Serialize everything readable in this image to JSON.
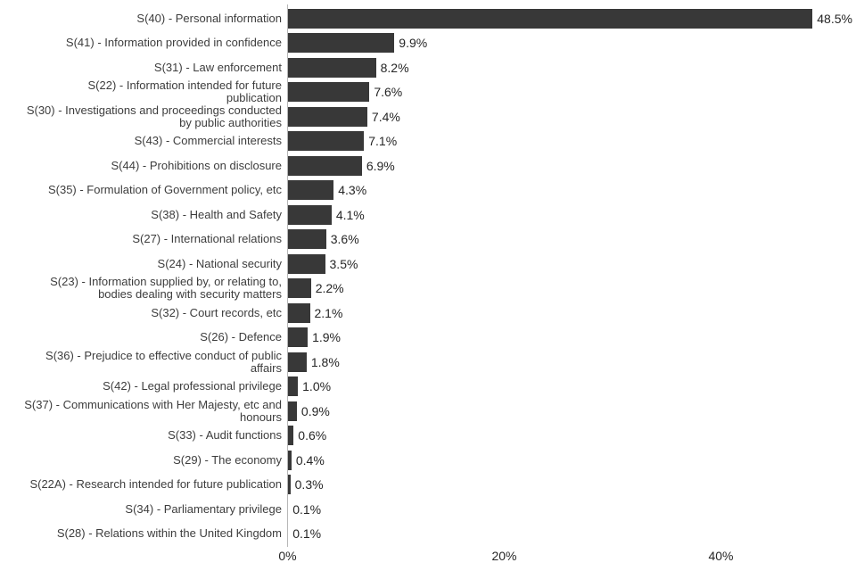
{
  "chart_data": {
    "type": "bar",
    "orientation": "horizontal",
    "title": "",
    "xlabel": "",
    "ylabel": "",
    "grid": false,
    "legend": false,
    "bar_color": "#383838",
    "label_color": "#3d3d3d",
    "axis_line_color": "#b7b7b7",
    "xlim": [
      0,
      52.5
    ],
    "x_ticks": [
      "0%",
      "20%",
      "40%"
    ],
    "x_tick_values": [
      0,
      20,
      40
    ],
    "categories": [
      "S(40) - Personal information",
      "S(41) - Information provided in confidence",
      "S(31) - Law enforcement",
      "S(22) - Information intended for future\npublication",
      "S(30) - Investigations and proceedings conducted\nby public authorities",
      "S(43) - Commercial interests",
      "S(44) - Prohibitions on disclosure",
      "S(35) - Formulation of Government policy, etc",
      "S(38) - Health and Safety",
      "S(27) - International relations",
      "S(24) - National security",
      "S(23) - Information supplied by, or relating to,\nbodies dealing with security matters",
      "S(32) - Court records, etc",
      "S(26) - Defence",
      "S(36) - Prejudice to effective conduct of public\naffairs",
      "S(42) - Legal professional privilege",
      "S(37) - Communications with Her Majesty, etc and\nhonours",
      "S(33) - Audit functions",
      "S(29) - The economy",
      "S(22A) - Research intended for future publication",
      "S(34) - Parliamentary privilege",
      "S(28) - Relations within the United Kingdom"
    ],
    "values": [
      48.5,
      9.9,
      8.2,
      7.6,
      7.4,
      7.1,
      6.9,
      4.3,
      4.1,
      3.6,
      3.5,
      2.2,
      2.1,
      1.9,
      1.8,
      1.0,
      0.9,
      0.6,
      0.4,
      0.3,
      0.1,
      0.1
    ],
    "value_labels": [
      "48.5%",
      "9.9%",
      "8.2%",
      "7.6%",
      "7.4%",
      "7.1%",
      "6.9%",
      "4.3%",
      "4.1%",
      "3.6%",
      "3.5%",
      "2.2%",
      "2.1%",
      "1.9%",
      "1.8%",
      "1.0%",
      "0.9%",
      "0.6%",
      "0.4%",
      "0.3%",
      "0.1%",
      "0.1%"
    ]
  }
}
